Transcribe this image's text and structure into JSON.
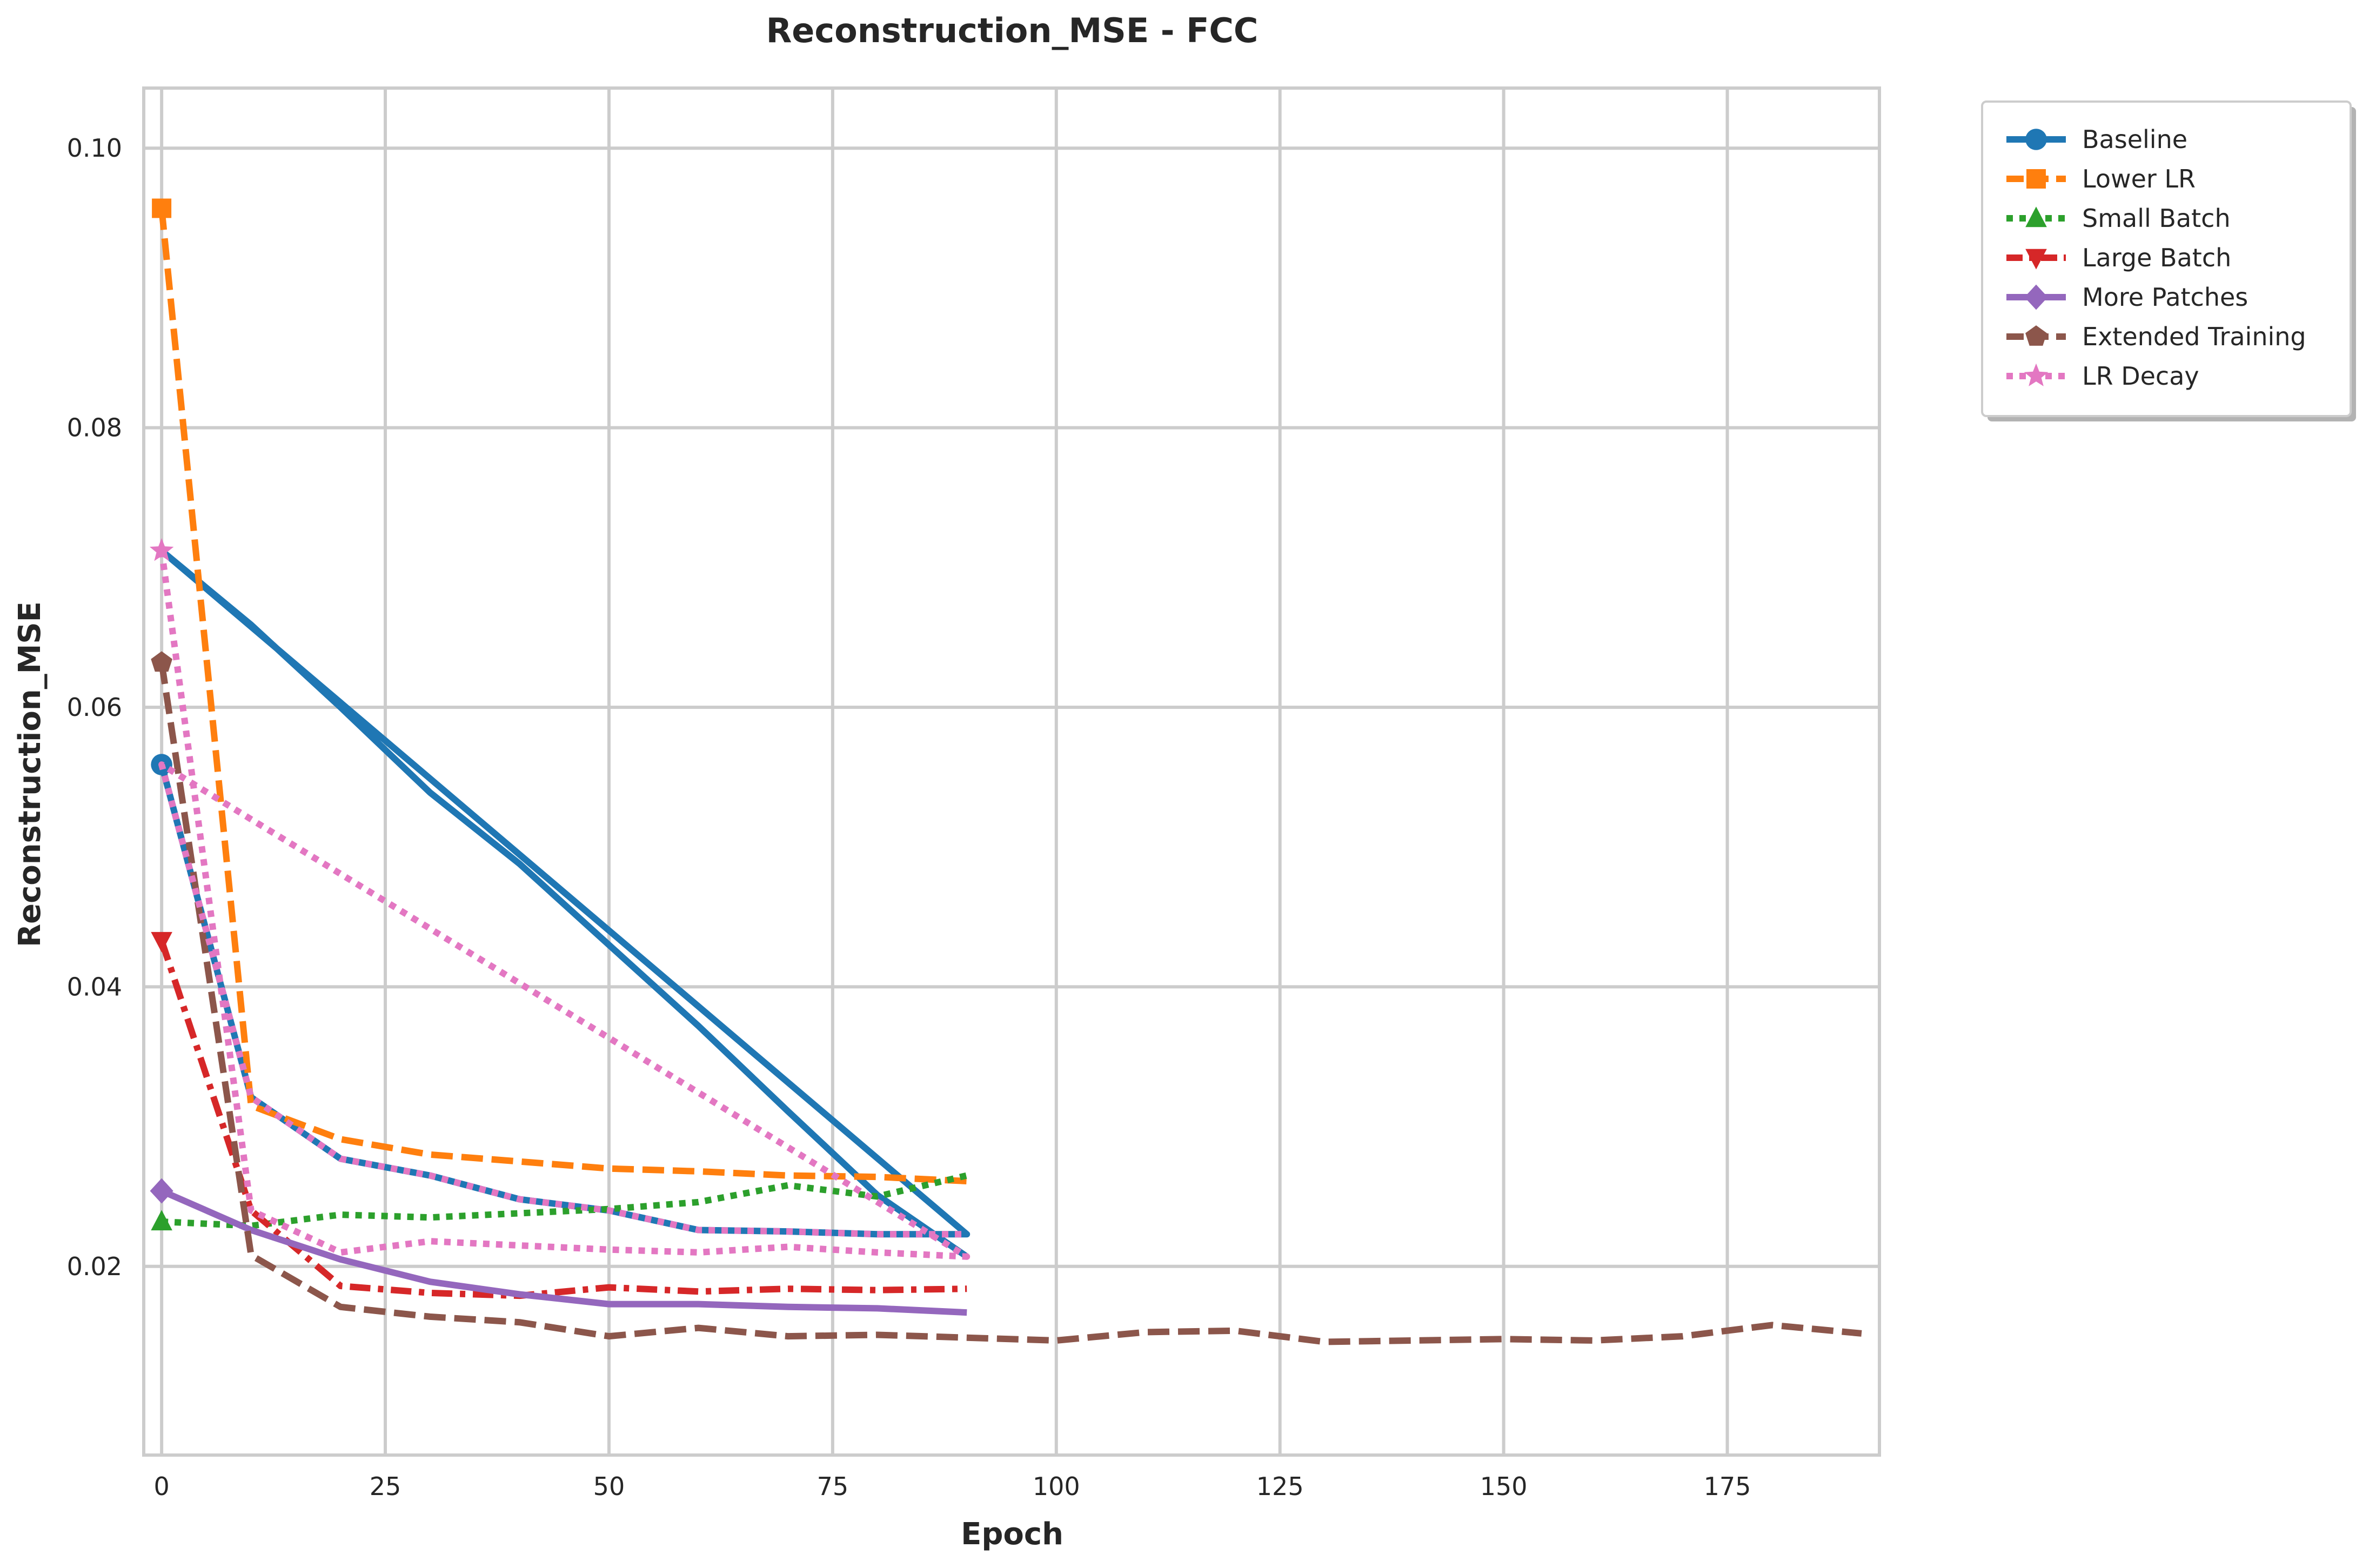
{
  "chart_data": {
    "type": "line",
    "title": "Reconstruction_MSE - FCC",
    "xlabel": "Epoch",
    "ylabel": "Reconstruction_MSE",
    "xlim": [
      -2,
      192
    ],
    "ylim": [
      0.0065,
      0.1043
    ],
    "xticks": [
      0,
      25,
      50,
      75,
      100,
      125,
      150,
      175
    ],
    "yticks": [
      0.02,
      0.04,
      0.06,
      0.08,
      0.1
    ],
    "xtick_labels": [
      "0",
      "25",
      "50",
      "75",
      "100",
      "125",
      "150",
      "175"
    ],
    "ytick_labels": [
      "0.02",
      "0.04",
      "0.06",
      "0.08",
      "0.10"
    ],
    "grid": true,
    "legend_position": "outside top-right",
    "series": [
      {
        "name": "Baseline",
        "color": "#1f77b4",
        "dash": "solid",
        "marker": "circle",
        "x": [
          0,
          10,
          20,
          30,
          40,
          50,
          60,
          70,
          80,
          90,
          0,
          10,
          20,
          30,
          40,
          50,
          60,
          70,
          80,
          90
        ],
        "y": [
          0.0559,
          0.0321,
          0.0277,
          0.0265,
          0.0248,
          0.024,
          0.0226,
          0.0225,
          0.0223,
          0.0223,
          0.0712,
          0.0659,
          0.06,
          0.0539,
          0.0488,
          0.043,
          0.0372,
          0.0311,
          0.0251,
          0.0207
        ]
      },
      {
        "name": "Lower LR",
        "color": "#ff7f0e",
        "dash": "dashed",
        "marker": "square",
        "x": [
          0,
          10,
          20,
          30,
          40,
          50,
          60,
          70,
          80,
          90
        ],
        "y": [
          0.0957,
          0.0315,
          0.0291,
          0.028,
          0.0275,
          0.027,
          0.0268,
          0.0265,
          0.0264,
          0.0261
        ]
      },
      {
        "name": "Small Batch",
        "color": "#2ca02c",
        "dash": "dotted",
        "marker": "triangle-up",
        "x": [
          0,
          10,
          20,
          30,
          40,
          50,
          60,
          70,
          80,
          90
        ],
        "y": [
          0.0232,
          0.0229,
          0.0237,
          0.0235,
          0.0238,
          0.0241,
          0.0246,
          0.0258,
          0.025,
          0.0265
        ]
      },
      {
        "name": "Large Batch",
        "color": "#d62728",
        "dash": "dashdot",
        "marker": "triangle-down",
        "x": [
          0,
          10,
          20,
          30,
          40,
          50,
          60,
          70,
          80,
          90
        ],
        "y": [
          0.0433,
          0.024,
          0.0186,
          0.0181,
          0.0179,
          0.0185,
          0.0182,
          0.0184,
          0.0183,
          0.0184
        ]
      },
      {
        "name": "More Patches",
        "color": "#9467bd",
        "dash": "solid",
        "marker": "diamond",
        "x": [
          0,
          10,
          20,
          30,
          40,
          50,
          60,
          70,
          80,
          90
        ],
        "y": [
          0.0254,
          0.0226,
          0.0205,
          0.0189,
          0.018,
          0.0173,
          0.0173,
          0.0171,
          0.017,
          0.0167
        ]
      },
      {
        "name": "Extended Training",
        "color": "#8c564b",
        "dash": "dashed",
        "marker": "pentagon",
        "x": [
          0,
          10,
          20,
          30,
          40,
          50,
          60,
          70,
          80,
          90,
          100,
          110,
          120,
          130,
          140,
          150,
          160,
          170,
          180,
          190
        ],
        "y": [
          0.0632,
          0.0208,
          0.0171,
          0.0164,
          0.016,
          0.015,
          0.0156,
          0.015,
          0.0151,
          0.0149,
          0.0147,
          0.0153,
          0.0154,
          0.0146,
          0.0147,
          0.0148,
          0.0147,
          0.015,
          0.0158,
          0.0152
        ]
      },
      {
        "name": "LR Decay",
        "color": "#e377c2",
        "dash": "dotted",
        "marker": "star",
        "x": [
          0,
          10,
          20,
          30,
          40,
          50,
          60,
          70,
          80,
          90,
          0,
          10,
          20,
          30,
          40,
          50,
          60,
          70,
          80,
          90
        ],
        "y": [
          0.0712,
          0.024,
          0.021,
          0.0218,
          0.0215,
          0.0212,
          0.021,
          0.0214,
          0.021,
          0.0207,
          0.0559,
          0.0321,
          0.0277,
          0.0265,
          0.0248,
          0.024,
          0.0226,
          0.0225,
          0.0223,
          0.0223
        ]
      }
    ]
  }
}
